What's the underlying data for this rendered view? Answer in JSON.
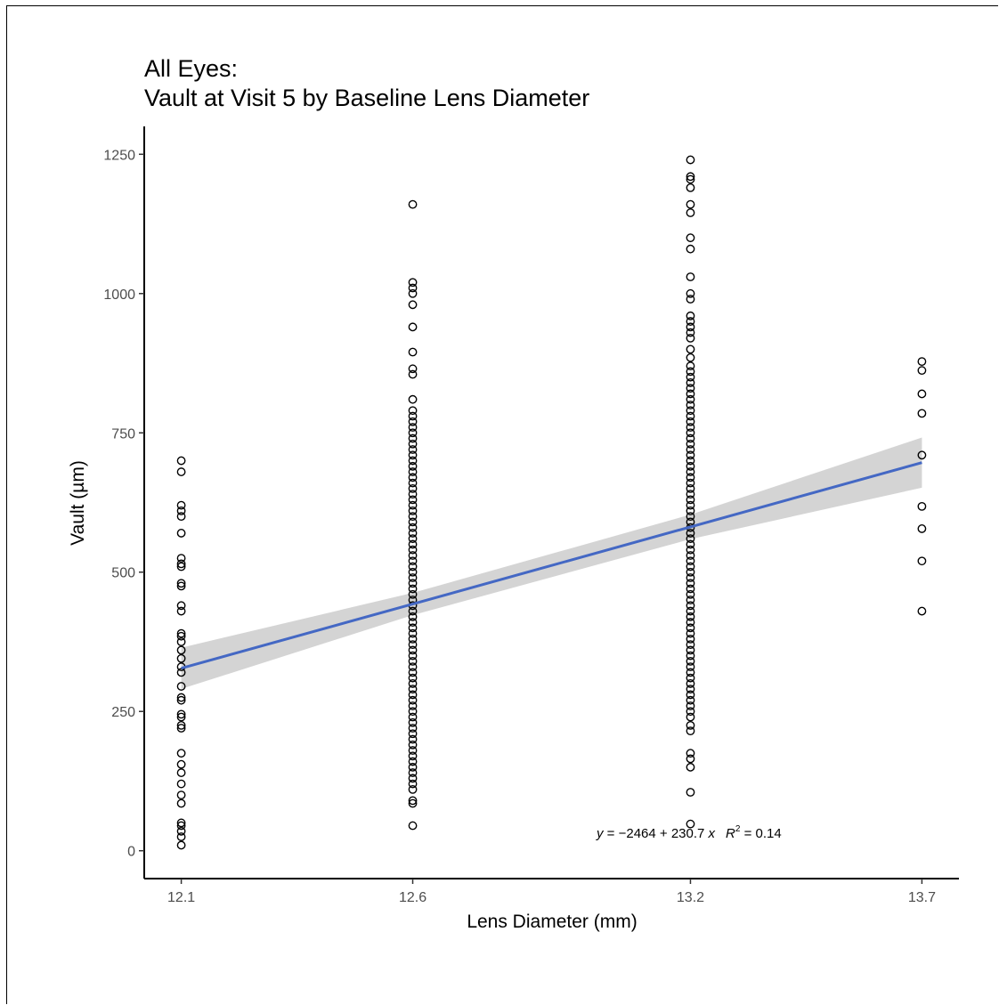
{
  "chart_data": {
    "type": "scatter",
    "title": "All Eyes:",
    "subtitle": "Vault at Visit 5 by Baseline Lens Diameter",
    "xlabel": "Lens Diameter (mm)",
    "ylabel": "Vault (µm)",
    "x_ticks": [
      "12.1",
      "12.6",
      "13.2",
      "13.7"
    ],
    "x_tick_values": [
      12.1,
      12.6,
      13.2,
      13.7
    ],
    "y_ticks": [
      0,
      250,
      500,
      750,
      1000,
      1250
    ],
    "y_tick_labels": [
      "0",
      "250",
      "500",
      "750",
      "1000",
      "1250"
    ],
    "xlim": [
      12.02,
      13.78
    ],
    "ylim": [
      -50,
      1300
    ],
    "grid": false,
    "point_color": "#000000",
    "line_color": "#4468c4",
    "band_color": "#bdbdbd",
    "series": [
      {
        "x": 12.1,
        "values": [
          700,
          680,
          620,
          610,
          600,
          570,
          525,
          515,
          510,
          480,
          475,
          440,
          430,
          390,
          385,
          375,
          360,
          345,
          330,
          320,
          295,
          275,
          270,
          245,
          240,
          225,
          220,
          175,
          155,
          140,
          120,
          100,
          85,
          50,
          45,
          35,
          25,
          10
        ]
      },
      {
        "x": 12.6,
        "values": [
          1160,
          1020,
          1010,
          1000,
          980,
          940,
          895,
          865,
          855,
          810,
          790,
          780,
          770,
          760,
          750,
          740,
          730,
          720,
          710,
          700,
          690,
          680,
          670,
          660,
          650,
          640,
          630,
          620,
          610,
          600,
          590,
          580,
          570,
          560,
          550,
          540,
          530,
          520,
          510,
          500,
          490,
          480,
          470,
          460,
          450,
          440,
          430,
          420,
          410,
          400,
          390,
          380,
          370,
          360,
          350,
          340,
          330,
          320,
          310,
          300,
          290,
          280,
          270,
          260,
          250,
          240,
          230,
          220,
          210,
          200,
          190,
          180,
          170,
          160,
          150,
          140,
          130,
          120,
          110,
          90,
          85,
          45
        ]
      },
      {
        "x": 13.2,
        "values": [
          1240,
          1210,
          1205,
          1190,
          1160,
          1145,
          1100,
          1080,
          1030,
          1000,
          990,
          960,
          950,
          940,
          930,
          920,
          900,
          885,
          870,
          860,
          850,
          840,
          830,
          820,
          810,
          800,
          790,
          780,
          770,
          760,
          750,
          740,
          730,
          720,
          710,
          700,
          690,
          680,
          670,
          660,
          650,
          640,
          630,
          620,
          610,
          600,
          590,
          580,
          570,
          560,
          550,
          540,
          530,
          520,
          510,
          500,
          490,
          480,
          470,
          460,
          450,
          440,
          430,
          420,
          410,
          400,
          390,
          380,
          370,
          360,
          350,
          340,
          330,
          320,
          310,
          300,
          290,
          280,
          270,
          260,
          250,
          240,
          225,
          215,
          175,
          165,
          150,
          105,
          48
        ]
      },
      {
        "x": 13.7,
        "values": [
          878,
          862,
          820,
          785,
          710,
          618,
          578,
          520,
          430
        ]
      }
    ],
    "fit": {
      "intercept": -2464,
      "slope": 230.7,
      "r2": 0.14,
      "x_range": [
        12.1,
        13.7
      ],
      "band_halfwidth": [
        37,
        20,
        22,
        45
      ]
    },
    "equation_text": {
      "lhs": "y",
      "rhs": " = −2464 + 230.7 ",
      "x": "x",
      "r": "R",
      "sup": "2",
      "r2val": " = 0.14"
    }
  }
}
